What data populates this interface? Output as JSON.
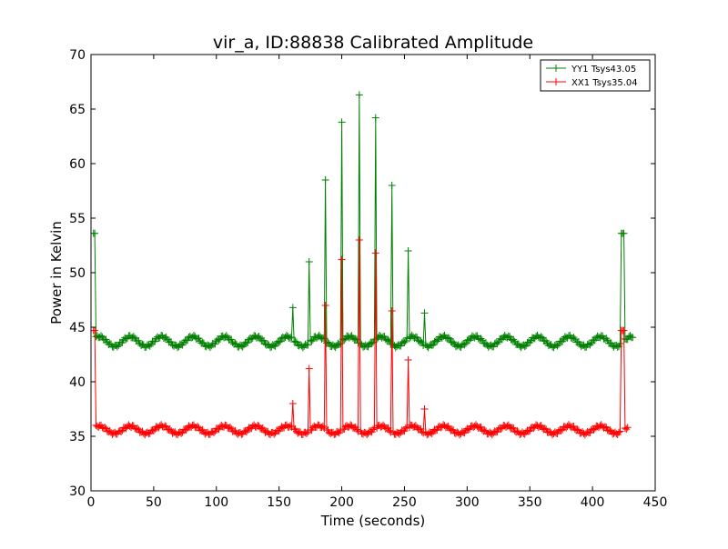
{
  "chart_data": {
    "type": "line",
    "title": "vir_a, ID:88838 Calibrated Amplitude",
    "xlabel": "Time (seconds)",
    "ylabel": "Power in Kelvin",
    "xlim": [
      0,
      450
    ],
    "ylim": [
      30,
      70
    ],
    "xticks": [
      "0",
      "50",
      "100",
      "150",
      "200",
      "250",
      "300",
      "350",
      "400",
      "450"
    ],
    "yticks": [
      "30",
      "35",
      "40",
      "45",
      "50",
      "55",
      "60",
      "65",
      "70"
    ],
    "grid": false,
    "legend_position": "top-right",
    "series": [
      {
        "name": "YY1 Tsys43.05",
        "color": "#008000",
        "marker": "plus",
        "baseline": 43.7,
        "ripple_amplitude": 0.45,
        "ripple_period_seconds": 25,
        "sample_step_seconds": 1,
        "x_start": 2,
        "x_end": 432,
        "spikes": [
          {
            "x": 2,
            "y": 53.6
          },
          {
            "x": 3,
            "y": 53.6
          },
          {
            "x": 161,
            "y": 46.8
          },
          {
            "x": 174,
            "y": 51.0
          },
          {
            "x": 187,
            "y": 58.5
          },
          {
            "x": 200,
            "y": 63.8
          },
          {
            "x": 214,
            "y": 66.3
          },
          {
            "x": 227,
            "y": 64.2
          },
          {
            "x": 240,
            "y": 58.0
          },
          {
            "x": 253,
            "y": 52.0
          },
          {
            "x": 266,
            "y": 46.3
          },
          {
            "x": 423,
            "y": 53.6
          },
          {
            "x": 424,
            "y": 53.6
          },
          {
            "x": 425,
            "y": 53.6
          }
        ]
      },
      {
        "name": "XX1 Tsys35.04",
        "color": "#ff0000",
        "marker": "plus",
        "baseline": 35.6,
        "ripple_amplitude": 0.35,
        "ripple_period_seconds": 25,
        "sample_step_seconds": 1,
        "x_start": 2,
        "x_end": 428,
        "spikes": [
          {
            "x": 2,
            "y": 44.7
          },
          {
            "x": 3,
            "y": 44.7
          },
          {
            "x": 161,
            "y": 38.0
          },
          {
            "x": 174,
            "y": 41.2
          },
          {
            "x": 187,
            "y": 47.0
          },
          {
            "x": 200,
            "y": 51.2
          },
          {
            "x": 214,
            "y": 53.0
          },
          {
            "x": 227,
            "y": 51.8
          },
          {
            "x": 240,
            "y": 46.5
          },
          {
            "x": 253,
            "y": 42.0
          },
          {
            "x": 266,
            "y": 37.5
          },
          {
            "x": 423,
            "y": 44.7
          },
          {
            "x": 424,
            "y": 44.7
          },
          {
            "x": 425,
            "y": 44.7
          }
        ]
      }
    ]
  }
}
